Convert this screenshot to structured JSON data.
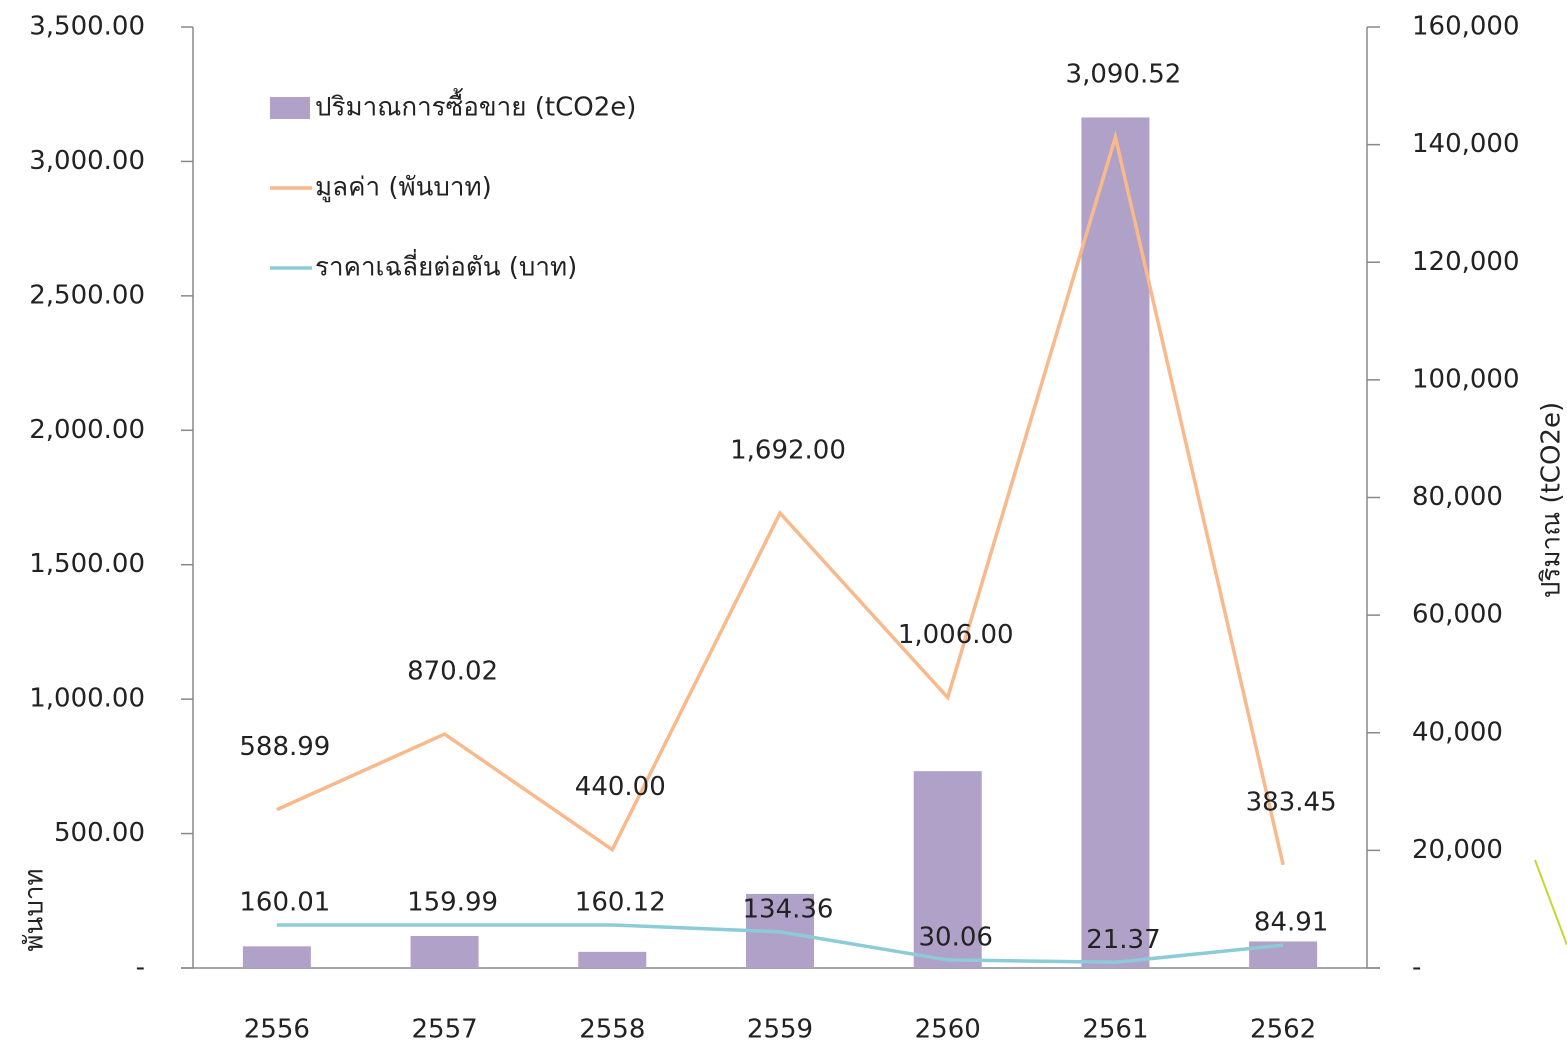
{
  "chart_data": {
    "type": "bar",
    "categories": [
      "2556",
      "2557",
      "2558",
      "2559",
      "2560",
      "2561",
      "2562"
    ],
    "series": [
      {
        "name": "ปริมาณการซื้อขาย (tCO2e)",
        "type": "bar",
        "axis": "y2",
        "color": "#b0a1c8",
        "values": [
          3681,
          5438,
          2748,
          12593,
          33466,
          144620,
          4516
        ]
      },
      {
        "name": "มูลค่า (พันบาท)",
        "type": "line",
        "color": "#f9b98a",
        "values": [
          588.99,
          870.02,
          440.0,
          1692.0,
          1006.0,
          3090.52,
          383.45
        ],
        "value_labels": [
          "588.99",
          "870.02",
          "440.00",
          "1,692.00",
          "1,006.00",
          "3,090.52",
          "383.45"
        ]
      },
      {
        "name": "ราคาเฉลี่ยต่อตัน (บาท)",
        "type": "line",
        "color": "#8ccbd8",
        "values": [
          160.01,
          159.99,
          160.12,
          134.36,
          30.06,
          21.37,
          84.91
        ],
        "value_labels": [
          "160.01",
          "159.99",
          "160.12",
          "134.36",
          "30.06",
          "21.37",
          "84.91"
        ]
      }
    ],
    "ylabel": "พันบาท",
    "y2label": "ปริมาณ (tCO2e)",
    "ylim": [
      0,
      3500
    ],
    "yticks": [
      {
        "value": 0,
        "label": "-"
      },
      {
        "value": 500,
        "label": "500.00"
      },
      {
        "value": 1000,
        "label": "1,000.00"
      },
      {
        "value": 1500,
        "label": "1,500.00"
      },
      {
        "value": 2000,
        "label": "2,000.00"
      },
      {
        "value": 2500,
        "label": "2,500.00"
      },
      {
        "value": 3000,
        "label": "3,000.00"
      },
      {
        "value": 3500,
        "label": "3,500.00"
      }
    ],
    "y2lim": [
      0,
      160000
    ],
    "y2ticks": [
      {
        "value": 0,
        "label": "-"
      },
      {
        "value": 20000,
        "label": "20,000"
      },
      {
        "value": 40000,
        "label": "40,000"
      },
      {
        "value": 60000,
        "label": "60,000"
      },
      {
        "value": 80000,
        "label": "80,000"
      },
      {
        "value": 100000,
        "label": "100,000"
      },
      {
        "value": 120000,
        "label": "120,000"
      },
      {
        "value": 140000,
        "label": "140,000"
      },
      {
        "value": 160000,
        "label": "160,000"
      }
    ],
    "legend": "upper left",
    "grid": false
  }
}
